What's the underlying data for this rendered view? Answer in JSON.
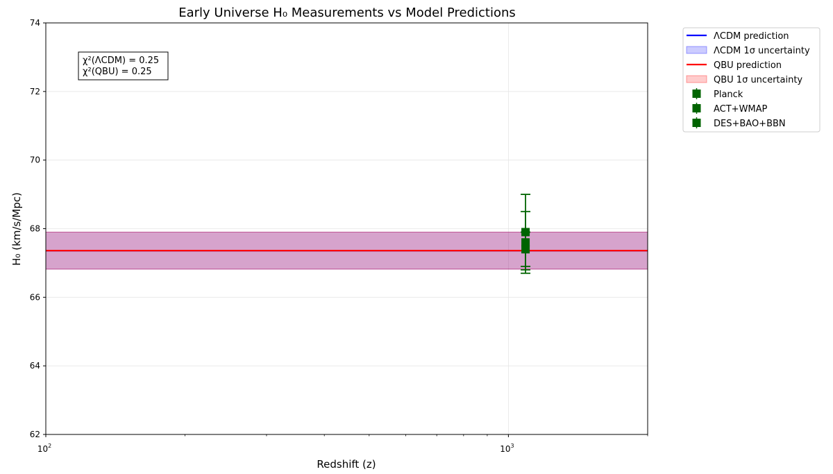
{
  "chart_data": {
    "type": "errorbar",
    "title": "Early Universe H₀ Measurements vs Model Predictions",
    "xlabel": "Redshift (z)",
    "ylabel": "H₀ (km/s/Mpc)",
    "xscale": "log",
    "xlim": [
      100,
      2000
    ],
    "ylim": [
      62,
      74
    ],
    "x_ticks": [
      {
        "value": 100,
        "base": "10",
        "exp": "2"
      },
      {
        "value": 1000,
        "base": "10",
        "exp": "3"
      }
    ],
    "y_ticks": [
      "62",
      "64",
      "66",
      "68",
      "70",
      "72",
      "74"
    ],
    "grid": true,
    "legend_position": "outside-top-right",
    "annotation": [
      "χ²(ΛCDM) = 0.25",
      "χ²(QBU) = 0.25"
    ],
    "models": [
      {
        "name": "ΛCDM prediction",
        "band_name": "ΛCDM 1σ uncertainty",
        "value": 67.36,
        "sigma": 0.54,
        "line_color": "#0000ff",
        "band_color": "#0000ff"
      },
      {
        "name": "QBU prediction",
        "band_name": "QBU 1σ uncertainty",
        "value": 67.36,
        "sigma": 0.54,
        "line_color": "#ff0000",
        "band_color": "#ff0000"
      }
    ],
    "series": [
      {
        "name": "Planck",
        "x": 1089,
        "y": 67.4,
        "err": 0.5,
        "color": "#006400"
      },
      {
        "name": "ACT+WMAP",
        "x": 1089,
        "y": 67.6,
        "err": 0.9,
        "color": "#006400"
      },
      {
        "name": "DES+BAO+BBN",
        "x": 1089,
        "y": 67.9,
        "err": 1.1,
        "color": "#006400"
      }
    ]
  }
}
